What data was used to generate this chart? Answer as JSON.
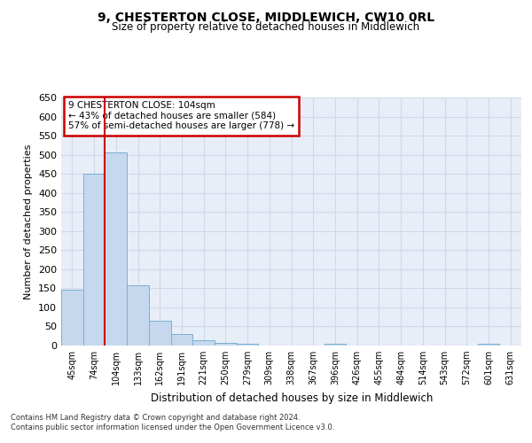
{
  "title": "9, CHESTERTON CLOSE, MIDDLEWICH, CW10 0RL",
  "subtitle": "Size of property relative to detached houses in Middlewich",
  "xlabel": "Distribution of detached houses by size in Middlewich",
  "ylabel": "Number of detached properties",
  "categories": [
    "45sqm",
    "74sqm",
    "104sqm",
    "133sqm",
    "162sqm",
    "191sqm",
    "221sqm",
    "250sqm",
    "279sqm",
    "309sqm",
    "338sqm",
    "367sqm",
    "396sqm",
    "426sqm",
    "455sqm",
    "484sqm",
    "514sqm",
    "543sqm",
    "572sqm",
    "601sqm",
    "631sqm"
  ],
  "values": [
    147,
    450,
    507,
    158,
    66,
    30,
    13,
    8,
    5,
    0,
    0,
    0,
    5,
    0,
    0,
    0,
    0,
    0,
    0,
    5,
    0
  ],
  "bar_color": "#c5d8ed",
  "bar_edge_color": "#7bafd4",
  "vline_color": "#cc0000",
  "annotation_text": "9 CHESTERTON CLOSE: 104sqm\n← 43% of detached houses are smaller (584)\n57% of semi-detached houses are larger (778) →",
  "annotation_box_color": "#ffffff",
  "annotation_box_edge": "#cc0000",
  "grid_color": "#d0d8e8",
  "background_color": "#e8eef8",
  "ylim": [
    0,
    650
  ],
  "yticks": [
    0,
    50,
    100,
    150,
    200,
    250,
    300,
    350,
    400,
    450,
    500,
    550,
    600,
    650
  ],
  "footer": "Contains HM Land Registry data © Crown copyright and database right 2024.\nContains public sector information licensed under the Open Government Licence v3.0."
}
